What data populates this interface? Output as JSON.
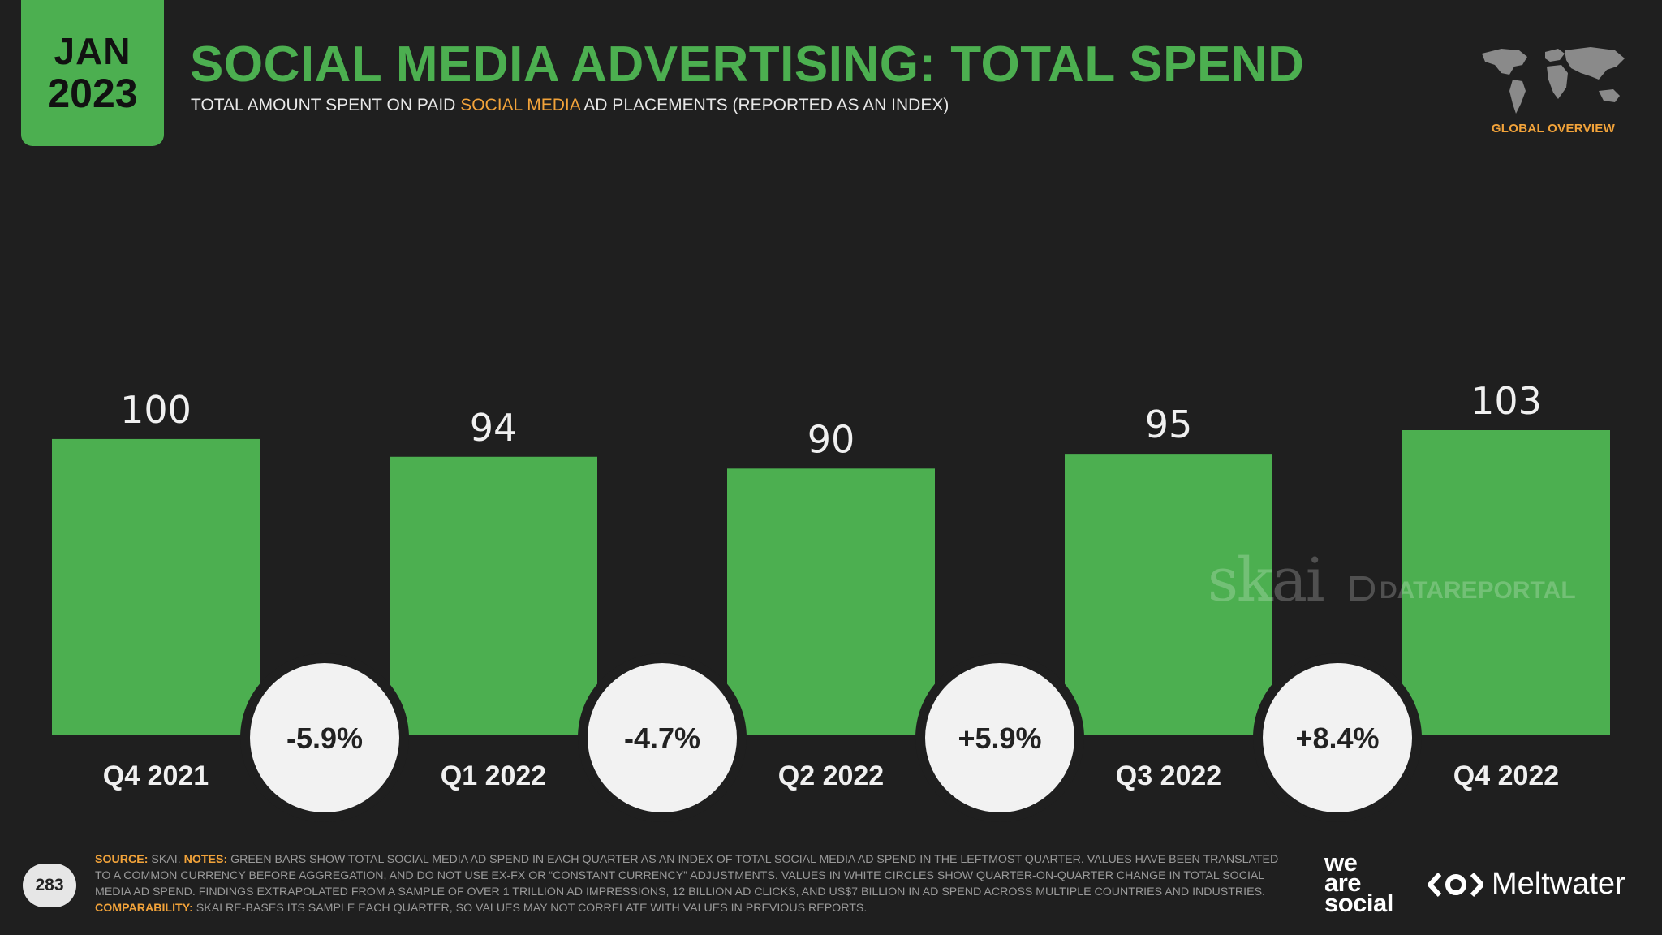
{
  "header": {
    "date_month": "JAN",
    "date_year": "2023",
    "title": "SOCIAL MEDIA ADVERTISING: TOTAL SPEND",
    "subtitle_pre": "TOTAL AMOUNT SPENT ON PAID ",
    "subtitle_highlight": "SOCIAL MEDIA",
    "subtitle_post": " AD PLACEMENTS (REPORTED AS AN INDEX)",
    "section_tag": "GLOBAL OVERVIEW"
  },
  "chart_data": {
    "type": "bar",
    "title": "SOCIAL MEDIA ADVERTISING: TOTAL SPEND",
    "xlabel": "",
    "ylabel": "",
    "ylim": [
      0,
      103
    ],
    "categories": [
      "Q4 2021",
      "Q1 2022",
      "Q2 2022",
      "Q3 2022",
      "Q4 2022"
    ],
    "values": [
      100,
      94,
      90,
      95,
      103
    ],
    "value_labels": [
      "100",
      "94",
      "90",
      "95",
      "103"
    ],
    "changes": [
      "-5.9%",
      "-4.7%",
      "+5.9%",
      "+8.4%"
    ],
    "bar_color": "#4caf50"
  },
  "watermarks": {
    "skai": "skai",
    "datareportal": "DATAREPORTAL"
  },
  "footer": {
    "page_number": "283",
    "source_key": "SOURCE:",
    "source_text": " SKAI. ",
    "notes_key": "NOTES:",
    "notes_text": " GREEN BARS SHOW TOTAL SOCIAL MEDIA AD SPEND IN EACH QUARTER AS AN INDEX OF TOTAL SOCIAL MEDIA AD SPEND IN THE LEFTMOST QUARTER. VALUES HAVE BEEN TRANSLATED TO A COMMON CURRENCY BEFORE AGGREGATION, AND DO NOT USE EX-FX OR “CONSTANT CURRENCY” ADJUSTMENTS. VALUES IN WHITE CIRCLES SHOW QUARTER-ON-QUARTER CHANGE IN TOTAL SOCIAL MEDIA AD SPEND. FINDINGS EXTRAPOLATED FROM A SAMPLE OF OVER 1 TRILLION AD IMPRESSIONS, 12 BILLION AD CLICKS, AND US$7 BILLION IN AD SPEND ACROSS MULTIPLE COUNTRIES AND INDUSTRIES.",
    "comparability_key": "COMPARABILITY:",
    "comparability_text": " SKAI RE-BASES ITS SAMPLE EACH QUARTER, SO VALUES MAY NOT CORRELATE WITH VALUES IN PREVIOUS REPORTS.",
    "logo_we": "we",
    "logo_are": "are",
    "logo_social": "social",
    "logo_meltwater": "Meltwater"
  },
  "colors": {
    "accent_green": "#4caf50",
    "accent_orange": "#f2a33a",
    "background": "#1f1f1f"
  }
}
